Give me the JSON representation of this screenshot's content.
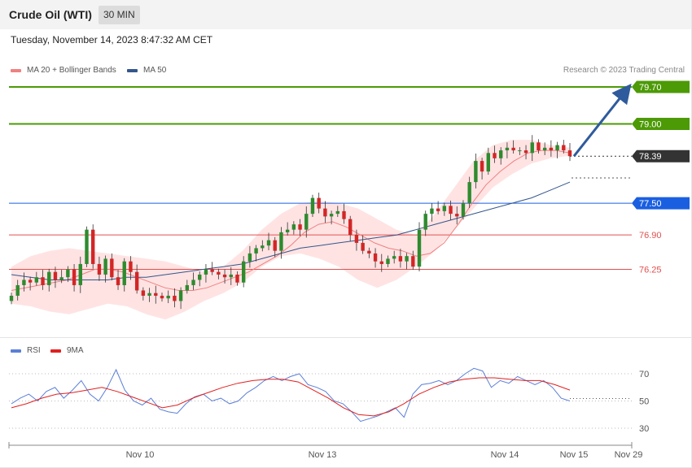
{
  "header": {
    "title": "Crude Oil (WTI)",
    "timeframe": "30 MIN"
  },
  "date": "Tuesday, November 14, 2023 8:47:32 AM CET",
  "credit": "Research © 2023 Trading Central",
  "legend": {
    "ma20": {
      "label": "MA 20 + Bollinger Bands",
      "color": "#f08080"
    },
    "ma50": {
      "label": "MA 50",
      "color": "#34568b"
    },
    "rsi": {
      "label": "RSI",
      "color": "#5b7fd6"
    },
    "ma9": {
      "label": "9MA",
      "color": "#e02020"
    }
  },
  "chart_data": {
    "type": "candlestick",
    "y_range": [
      75.35,
      80.0
    ],
    "price_levels": [
      {
        "label": "79.70",
        "value": 79.7,
        "kind": "target",
        "color": "#4c9a06"
      },
      {
        "label": "79.00",
        "value": 79.0,
        "kind": "target",
        "color": "#4c9a06"
      },
      {
        "label": "78.39",
        "value": 78.39,
        "kind": "last",
        "color": "#333333"
      },
      {
        "label": "77.50",
        "value": 77.5,
        "kind": "pivot",
        "color": "#1a5fe0"
      },
      {
        "label": "76.90",
        "value": 76.9,
        "kind": "support",
        "color": "#e05050"
      },
      {
        "label": "76.25",
        "value": 76.25,
        "kind": "support",
        "color": "#e05050"
      }
    ],
    "x_tick_labels": [
      "Nov 10",
      "Nov 13",
      "Nov 14",
      "Nov 15",
      "Nov 29"
    ],
    "candle_close_path": [
      75.75,
      75.95,
      76.05,
      76.0,
      76.1,
      75.95,
      76.2,
      76.05,
      76.1,
      76.25,
      75.95,
      76.35,
      77.0,
      76.35,
      76.15,
      76.45,
      76.1,
      75.95,
      76.4,
      76.2,
      75.85,
      75.75,
      75.8,
      75.75,
      75.7,
      75.75,
      75.65,
      75.85,
      75.95,
      76.05,
      76.15,
      76.25,
      76.2,
      76.15,
      76.1,
      76.15,
      76.0,
      76.4,
      76.55,
      76.65,
      76.7,
      76.8,
      76.6,
      76.95,
      77.0,
      77.1,
      77.0,
      77.3,
      77.6,
      77.4,
      77.25,
      77.3,
      77.35,
      77.2,
      76.9,
      76.75,
      76.6,
      76.55,
      76.4,
      76.35,
      76.45,
      76.5,
      76.4,
      76.5,
      76.3,
      77.0,
      77.3,
      77.4,
      77.35,
      77.45,
      77.3,
      77.25,
      77.5,
      77.9,
      78.3,
      78.1,
      78.45,
      78.35,
      78.5,
      78.55,
      78.5,
      78.5,
      78.45,
      78.65,
      78.5,
      78.55,
      78.5,
      78.6,
      78.5,
      78.39
    ],
    "ma20_path": [
      75.85,
      75.9,
      75.95,
      76.0,
      76.05,
      76.15,
      76.25,
      76.25,
      76.2,
      76.1,
      76.0,
      75.9,
      75.85,
      75.85,
      75.9,
      76.0,
      76.1,
      76.2,
      76.35,
      76.5,
      76.7,
      76.95,
      77.1,
      77.15,
      77.05,
      76.9,
      76.75,
      76.65,
      76.6,
      76.5,
      76.55,
      76.75,
      77.1,
      77.5,
      77.85,
      78.1,
      78.3,
      78.45,
      78.5,
      78.5,
      78.45
    ],
    "ma50_path": [
      76.15,
      76.1,
      76.05,
      76.05,
      76.05,
      76.05,
      76.1,
      76.1,
      76.15,
      76.2,
      76.25,
      76.3,
      76.35,
      76.45,
      76.55,
      76.65,
      76.7,
      76.75,
      76.8,
      76.85,
      76.9,
      77.0,
      77.1,
      77.2,
      77.3,
      77.4,
      77.5,
      77.6,
      77.75,
      77.9
    ],
    "bb_upper_path": [
      76.3,
      76.5,
      76.6,
      76.65,
      76.6,
      76.55,
      76.5,
      76.45,
      76.4,
      76.3,
      76.2,
      76.3,
      76.6,
      77.0,
      77.3,
      77.5,
      77.55,
      77.5,
      77.4,
      77.2,
      77.0,
      76.9,
      77.3,
      77.8,
      78.3,
      78.6,
      78.7,
      78.7,
      78.6,
      78.55
    ],
    "bb_lower_path": [
      75.6,
      75.55,
      75.45,
      75.4,
      75.5,
      75.6,
      75.55,
      75.4,
      75.3,
      75.45,
      75.65,
      75.8,
      76.0,
      76.3,
      76.5,
      76.55,
      76.45,
      76.3,
      76.05,
      75.9,
      76.05,
      76.3,
      76.6,
      77.0,
      77.4,
      77.8,
      78.05,
      78.25,
      78.35,
      78.4
    ],
    "forecast_arrow": {
      "from": 78.39,
      "to": 79.7
    },
    "rsi": {
      "levels": [
        70,
        50,
        30
      ],
      "y_range": [
        20,
        80
      ],
      "rsi_path": [
        48,
        52,
        55,
        50,
        57,
        60,
        52,
        58,
        65,
        55,
        50,
        60,
        73,
        58,
        50,
        47,
        52,
        44,
        42,
        41,
        48,
        53,
        55,
        50,
        52,
        48,
        50,
        56,
        60,
        65,
        68,
        65,
        68,
        70,
        62,
        60,
        57,
        50,
        48,
        42,
        35,
        37,
        39,
        42,
        45,
        38,
        55,
        62,
        63,
        65,
        62,
        65,
        70,
        74,
        72,
        60,
        65,
        63,
        68,
        65,
        62,
        65,
        60,
        52,
        50
      ],
      "ma9_path": [
        45,
        48,
        52,
        55,
        56,
        58,
        60,
        57,
        53,
        49,
        45,
        47,
        52,
        56,
        60,
        63,
        65,
        66,
        66,
        64,
        58,
        52,
        45,
        40,
        39,
        42,
        48,
        55,
        60,
        64,
        66,
        67,
        67,
        66,
        65,
        65,
        62,
        58
      ]
    }
  }
}
